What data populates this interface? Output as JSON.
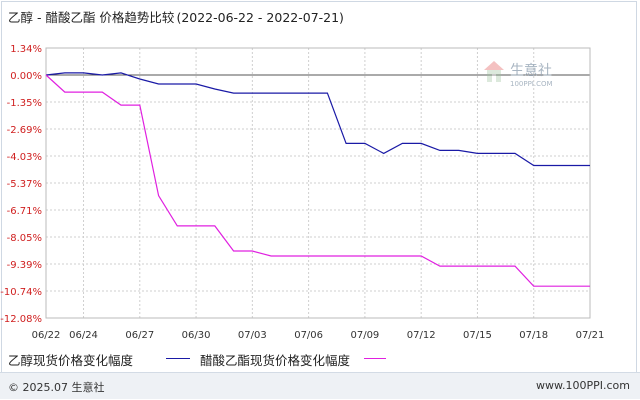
{
  "title": {
    "main": "乙醇 - 醋酸乙酯 价格趋势比较",
    "range": "(2022-06-22 - 2022-07-21)"
  },
  "watermark": {
    "brand": "生意社",
    "url": "100PPI.COM"
  },
  "legend": {
    "series1": "乙醇现货价格变化幅度",
    "series2": "醋酸乙酯现货价格变化幅度"
  },
  "footer": {
    "copyright": "© 2025.07 生意社",
    "site": "www.100PPI.com"
  },
  "colors": {
    "series1": "#1a1aa6",
    "series2": "#e020e0",
    "grid": "#cfcfcf",
    "baseline": "#555555",
    "axis_label": "#d02020"
  },
  "chart_data": {
    "type": "line",
    "x": [
      "06/22",
      "06/23",
      "06/24",
      "06/25",
      "06/26",
      "06/27",
      "06/28",
      "06/29",
      "06/30",
      "07/01",
      "07/02",
      "07/03",
      "07/04",
      "07/05",
      "07/06",
      "07/07",
      "07/08",
      "07/09",
      "07/10",
      "07/11",
      "07/12",
      "07/13",
      "07/14",
      "07/15",
      "07/16",
      "07/17",
      "07/18",
      "07/19",
      "07/20",
      "07/21"
    ],
    "xticks": [
      "06/22",
      "06/24",
      "06/27",
      "06/30",
      "07/03",
      "07/06",
      "07/09",
      "07/12",
      "07/15",
      "07/18",
      "07/21"
    ],
    "yticks": [
      "1.34%",
      "0.00%",
      "-1.35%",
      "-2.69%",
      "-4.03%",
      "-5.37%",
      "-6.71%",
      "-8.05%",
      "-9.39%",
      "-10.74%",
      "-12.08%"
    ],
    "ylim": [
      -12.08,
      1.34
    ],
    "series": [
      {
        "name": "乙醇现货价格变化幅度",
        "values": [
          0.0,
          0.1,
          0.1,
          0.0,
          0.1,
          -0.2,
          -0.45,
          -0.45,
          -0.45,
          -0.7,
          -0.9,
          -0.9,
          -0.9,
          -0.9,
          -0.9,
          -0.9,
          -3.4,
          -3.4,
          -3.9,
          -3.4,
          -3.4,
          -3.75,
          -3.75,
          -3.9,
          -3.9,
          -3.9,
          -4.5,
          -4.5,
          -4.5,
          -4.5
        ]
      },
      {
        "name": "醋酸乙酯现货价格变化幅度",
        "values": [
          0.0,
          -0.85,
          -0.85,
          -0.85,
          -1.5,
          -1.5,
          -6.0,
          -7.5,
          -7.5,
          -7.5,
          -8.75,
          -8.75,
          -9.0,
          -9.0,
          -9.0,
          -9.0,
          -9.0,
          -9.0,
          -9.0,
          -9.0,
          -9.0,
          -9.5,
          -9.5,
          -9.5,
          -9.5,
          -9.5,
          -10.5,
          -10.5,
          -10.5,
          -10.5
        ]
      }
    ]
  }
}
